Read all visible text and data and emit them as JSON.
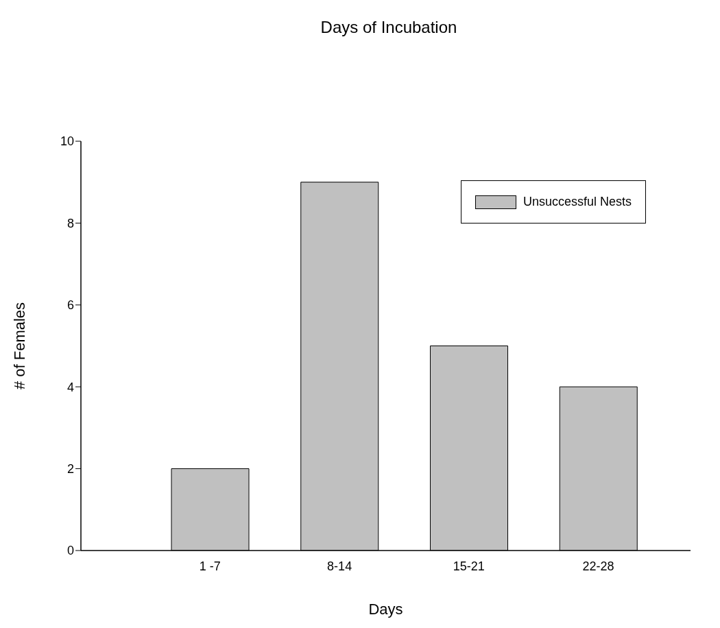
{
  "chart_data": {
    "type": "bar",
    "title": "Days of Incubation",
    "xlabel": "Days",
    "ylabel": "# of Females",
    "categories": [
      "1 -7",
      "8-14",
      "15-21",
      "22-28"
    ],
    "series": [
      {
        "name": "Unsuccessful Nests",
        "color": "#c0c0c0",
        "values": [
          2,
          9,
          5,
          4
        ]
      }
    ],
    "ylim": [
      0,
      10
    ],
    "yticks": [
      0,
      2,
      4,
      6,
      8,
      10
    ],
    "grid": false,
    "legend": "top right"
  }
}
